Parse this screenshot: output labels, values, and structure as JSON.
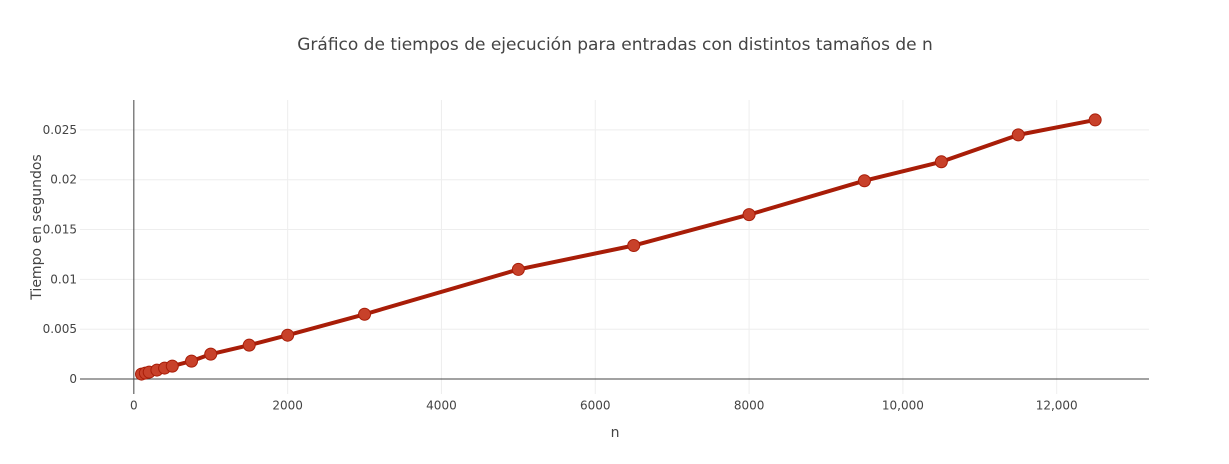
{
  "chart_data": {
    "type": "line",
    "title": "Gráfico de tiempos de ejecución para entradas con distintos tamaños de n",
    "xlabel": "n",
    "ylabel": "Tiempo en segundos",
    "xlim": [
      -700,
      13200
    ],
    "ylim": [
      -0.0015,
      0.028
    ],
    "x_ticks": [
      0,
      2000,
      4000,
      6000,
      8000,
      10000,
      12000
    ],
    "x_tick_labels": [
      "0",
      "2000",
      "4000",
      "6000",
      "8000",
      "10,000",
      "12,000"
    ],
    "y_ticks": [
      0,
      0.005,
      0.01,
      0.015,
      0.02,
      0.025
    ],
    "y_tick_labels": [
      "0",
      "0.005",
      "0.01",
      "0.015",
      "0.02",
      "0.025"
    ],
    "grid": true,
    "series": [
      {
        "color": "#a81d08",
        "marker_color": "#c8412a",
        "x": [
          100,
          150,
          200,
          300,
          400,
          500,
          750,
          1000,
          1500,
          2000,
          3000,
          5000,
          6500,
          8000,
          9500,
          10500,
          11500,
          12500
        ],
        "y": [
          0.0005,
          0.0006,
          0.0007,
          0.0009,
          0.0011,
          0.0013,
          0.0018,
          0.0025,
          0.0034,
          0.0044,
          0.0065,
          0.011,
          0.0134,
          0.0165,
          0.0199,
          0.0218,
          0.0245,
          0.026
        ]
      }
    ]
  }
}
